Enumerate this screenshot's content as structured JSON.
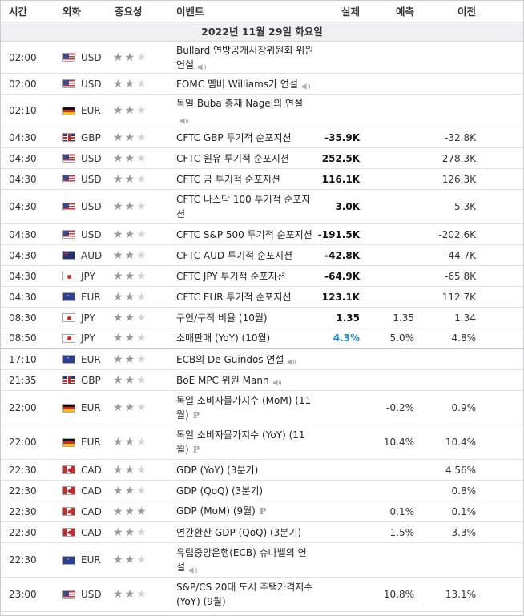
{
  "header": {
    "time": "시간",
    "currency": "외화",
    "importance": "중요성",
    "event": "이벤트",
    "actual": "실제",
    "forecast": "예측",
    "previous": "이전"
  },
  "day_label": "2022년 11월 29일 화요일",
  "rows": [
    {
      "time": "02:00",
      "flag": "us",
      "cur": "USD",
      "stars": 2,
      "event": "Bullard 연방공개시장위원회 위원 연설",
      "speech": true,
      "actual": "",
      "forecast": "",
      "previous": "",
      "h": 40
    },
    {
      "time": "02:00",
      "flag": "us",
      "cur": "USD",
      "stars": 2,
      "event": "FOMC 멤버 Williams가 연설",
      "speech": true,
      "actual": "",
      "forecast": "",
      "previous": "",
      "h": 26
    },
    {
      "time": "02:10",
      "flag": "de",
      "cur": "EUR",
      "stars": 2,
      "event": "독일 Buba 총재 Nagel의 연설",
      "speech": true,
      "actual": "",
      "forecast": "",
      "previous": "",
      "h": 41
    },
    {
      "time": "04:30",
      "flag": "gb",
      "cur": "GBP",
      "stars": 2,
      "event": "CFTC GBP 투기적 순포지션",
      "actual": "-35.9K",
      "forecast": "",
      "previous": "-32.8K",
      "h": 26
    },
    {
      "time": "04:30",
      "flag": "us",
      "cur": "USD",
      "stars": 2,
      "event": "CFTC 원유 투기적 순포지션",
      "actual": "252.5K",
      "forecast": "",
      "previous": "278.3K",
      "h": 26
    },
    {
      "time": "04:30",
      "flag": "us",
      "cur": "USD",
      "stars": 2,
      "event": "CFTC 금 투기적 순포지션",
      "actual": "116.1K",
      "forecast": "",
      "previous": "126.3K",
      "h": 26
    },
    {
      "time": "04:30",
      "flag": "us",
      "cur": "USD",
      "stars": 2,
      "event": "CFTC 나스닥 100 투기적 순포지션",
      "actual": "3.0K",
      "forecast": "",
      "previous": "-5.3K",
      "h": 43
    },
    {
      "time": "04:30",
      "flag": "us",
      "cur": "USD",
      "stars": 2,
      "event": "CFTC S&P 500 투기적 순포지션",
      "actual": "-191.5K",
      "forecast": "",
      "previous": "-202.6K",
      "h": 26
    },
    {
      "time": "04:30",
      "flag": "au",
      "cur": "AUD",
      "stars": 2,
      "event": "CFTC AUD 투기적 순포지션",
      "actual": "-42.8K",
      "forecast": "",
      "previous": "-44.7K",
      "h": 26
    },
    {
      "time": "04:30",
      "flag": "jp",
      "cur": "JPY",
      "stars": 2,
      "event": "CFTC JPY 투기적 순포지션",
      "actual": "-64.9K",
      "forecast": "",
      "previous": "-65.8K",
      "h": 26
    },
    {
      "time": "04:30",
      "flag": "eu",
      "cur": "EUR",
      "stars": 2,
      "event": "CFTC EUR 투기적 순포지션",
      "actual": "123.1K",
      "forecast": "",
      "previous": "112.7K",
      "h": 26
    },
    {
      "time": "08:30",
      "flag": "jp",
      "cur": "JPY",
      "stars": 2,
      "event": "구인/구직 비율 (10월)",
      "actual": "1.35",
      "forecast": "1.35",
      "previous": "1.34",
      "h": 26
    },
    {
      "time": "08:50",
      "flag": "jp",
      "cur": "JPY",
      "stars": 2,
      "event": "소매판매 (YoY) (10월)",
      "actual": "4.3%",
      "actual_pos": true,
      "forecast": "5.0%",
      "previous": "4.8%",
      "h": 26,
      "sep": true
    },
    {
      "time": "17:10",
      "flag": "eu",
      "cur": "EUR",
      "stars": 2,
      "event": "ECB의 De Guindos 연설",
      "speech": true,
      "actual": "",
      "forecast": "",
      "previous": "",
      "h": 26
    },
    {
      "time": "21:35",
      "flag": "gb",
      "cur": "GBP",
      "stars": 2,
      "event": "BoE MPC 위원 Mann",
      "speech": true,
      "actual": "",
      "forecast": "",
      "previous": "",
      "h": 26
    },
    {
      "time": "22:00",
      "flag": "de",
      "cur": "EUR",
      "stars": 2,
      "event": "독일 소비자물가지수 (MoM) (11월)",
      "prelim": true,
      "actual": "",
      "forecast": "-0.2%",
      "previous": "0.9%",
      "h": 43
    },
    {
      "time": "22:00",
      "flag": "de",
      "cur": "EUR",
      "stars": 2,
      "event": "독일 소비자물가지수 (YoY) (11월)",
      "prelim": true,
      "actual": "",
      "forecast": "10.4%",
      "previous": "10.4%",
      "h": 43
    },
    {
      "time": "22:30",
      "flag": "ca",
      "cur": "CAD",
      "stars": 2,
      "event": "GDP (YoY) (3분기)",
      "actual": "",
      "forecast": "",
      "previous": "4.56%",
      "h": 26
    },
    {
      "time": "22:30",
      "flag": "ca",
      "cur": "CAD",
      "stars": 2,
      "event": "GDP (QoQ) (3분기)",
      "actual": "",
      "forecast": "",
      "previous": "0.8%",
      "h": 26
    },
    {
      "time": "22:30",
      "flag": "ca",
      "cur": "CAD",
      "stars": 3,
      "event": "GDP (MoM) (9월)",
      "prelim": true,
      "actual": "",
      "forecast": "0.1%",
      "previous": "0.1%",
      "h": 26
    },
    {
      "time": "22:30",
      "flag": "ca",
      "cur": "CAD",
      "stars": 2,
      "event": "연간환산 GDP (QoQ) (3분기)",
      "actual": "",
      "forecast": "1.5%",
      "previous": "3.3%",
      "h": 26
    },
    {
      "time": "22:30",
      "flag": "eu",
      "cur": "EUR",
      "stars": 2,
      "event": "유럽중앙은행(ECB) 슈나벨의 연설",
      "speech": true,
      "actual": "",
      "forecast": "",
      "previous": "",
      "h": 43
    },
    {
      "time": "23:00",
      "flag": "us",
      "cur": "USD",
      "stars": 2,
      "event": "S&P/CS 20대 도시 주택가격지수 (YoY) (9월)",
      "actual": "",
      "forecast": "10.8%",
      "previous": "13.1%",
      "h": 43
    }
  ]
}
